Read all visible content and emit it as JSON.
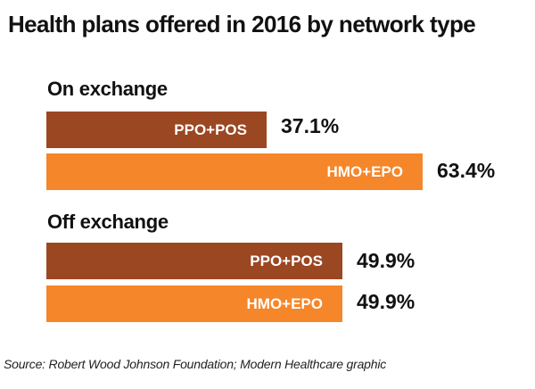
{
  "chart_data": {
    "type": "bar",
    "orientation": "horizontal",
    "title": "Health plans offered in 2016 by network type",
    "groups": [
      {
        "name": "On exchange",
        "bars": [
          {
            "label": "PPO+POS",
            "value": 37.1,
            "display": "37.1%",
            "color": "#9b4722"
          },
          {
            "label": "HMO+EPO",
            "value": 63.4,
            "display": "63.4%",
            "color": "#f5862a"
          }
        ]
      },
      {
        "name": "Off exchange",
        "bars": [
          {
            "label": "PPO+POS",
            "value": 49.9,
            "display": "49.9%",
            "color": "#9b4722"
          },
          {
            "label": "HMO+EPO",
            "value": 49.9,
            "display": "49.9%",
            "color": "#f5862a"
          }
        ]
      }
    ],
    "source": "Source: Robert Wood Johnson Foundation; Modern Healthcare graphic",
    "grid": false,
    "legend": "none"
  }
}
